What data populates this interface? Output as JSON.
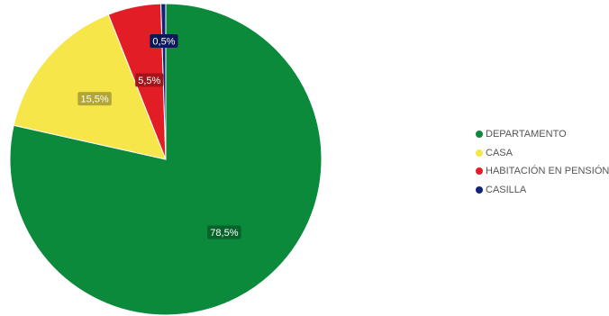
{
  "chart_data": {
    "type": "pie",
    "series": [
      {
        "name": "DEPARTAMENTO",
        "value": 78.5,
        "label": "78,5%",
        "color": "#0a8a3a"
      },
      {
        "name": "CASA",
        "value": 15.5,
        "label": "15,5%",
        "color": "#f7e64a"
      },
      {
        "name": "HABITACIÓN EN PENSIÓN",
        "value": 5.5,
        "label": "5,5%",
        "color": "#e31d26"
      },
      {
        "name": "CASILLA",
        "value": 0.5,
        "label": "0,5%",
        "color": "#10237a"
      }
    ],
    "legend_position": "right"
  }
}
